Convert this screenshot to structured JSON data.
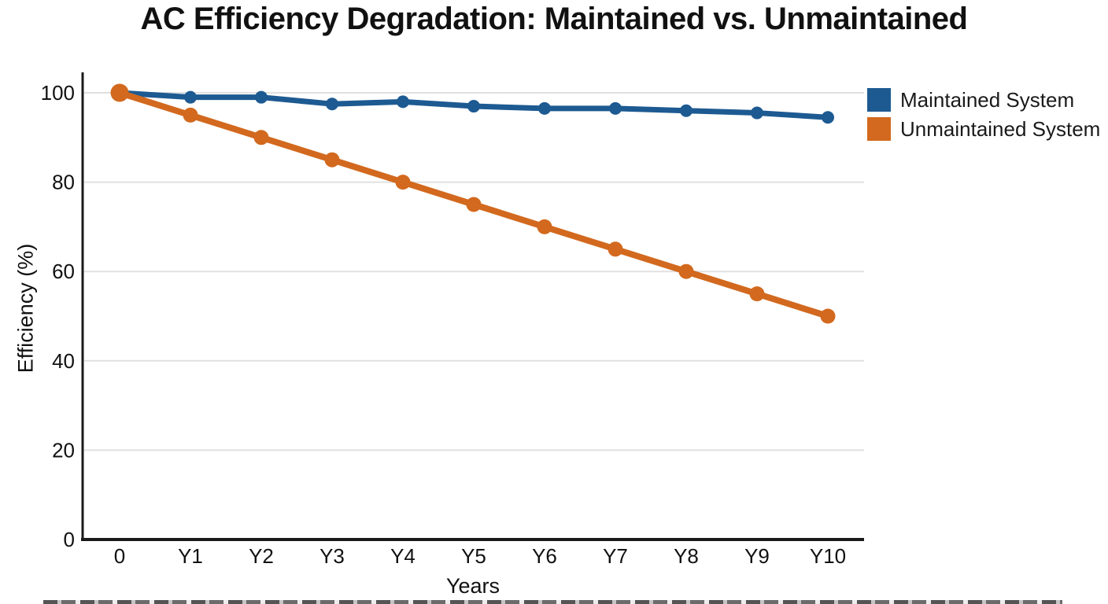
{
  "chart_data": {
    "type": "line",
    "title": "AC Efficiency Degradation: Maintained vs. Unmaintained",
    "xlabel": "Years",
    "ylabel": "Efficiency (%)",
    "categories": [
      "0",
      "Y1",
      "Y2",
      "Y3",
      "Y4",
      "Y5",
      "Y6",
      "Y7",
      "Y8",
      "Y9",
      "Y10"
    ],
    "series": [
      {
        "name": "Maintained System",
        "color": "#1d5a92",
        "values": [
          100,
          99,
          99,
          97.5,
          98,
          97,
          96.5,
          96.5,
          96,
          95.5,
          94.5
        ]
      },
      {
        "name": "Unmaintained System",
        "color": "#d2691e",
        "values": [
          100,
          95,
          90,
          85,
          80,
          75,
          70,
          65,
          60,
          55,
          50
        ]
      }
    ],
    "ylim": [
      0,
      100
    ],
    "yticks": [
      0,
      20,
      40,
      60,
      80,
      100
    ],
    "grid": true,
    "legend_position": "right-top",
    "colors": {
      "axis": "#1a1a1a",
      "gridline": "#e0e0e0",
      "text": "#111111"
    }
  }
}
